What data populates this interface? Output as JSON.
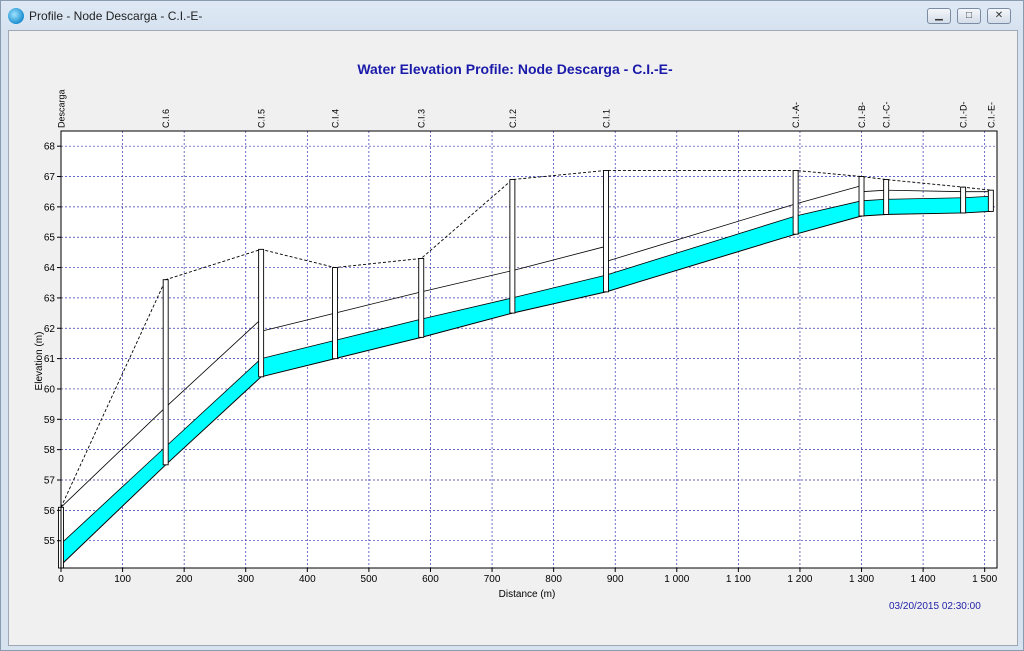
{
  "window": {
    "title": "Profile - Node Descarga - C.I.-E-",
    "minimize_icon": "minimize-icon",
    "maximize_icon": "maximize-icon",
    "close_icon": "close-icon"
  },
  "timestamp": "03/20/2015 02:30:00",
  "colors": {
    "water": "#00ffff",
    "title": "#1a1aaa",
    "grid": "#3333aa",
    "timestamp": "#2222aa"
  },
  "chart_data": {
    "type": "line",
    "title": "Water Elevation Profile:  Node Descarga - C.I.-E-",
    "xlabel": "Distance (m)",
    "ylabel": "Elevation (m)",
    "xlim": [
      0,
      1520
    ],
    "ylim": [
      54.1,
      68.5
    ],
    "xticks": [
      0,
      100,
      200,
      300,
      400,
      500,
      600,
      700,
      800,
      900,
      1000,
      1100,
      1200,
      1300,
      1400,
      1500
    ],
    "xtick_labels": [
      "0",
      "100",
      "200",
      "300",
      "400",
      "500",
      "600",
      "700",
      "800",
      "900",
      "1 000",
      "1 100",
      "1 200",
      "1 300",
      "1 400",
      "1 500"
    ],
    "yticks": [
      55,
      56,
      57,
      58,
      59,
      60,
      61,
      62,
      63,
      64,
      65,
      66,
      67,
      68
    ],
    "grid": true,
    "nodes": [
      {
        "name": "Descarga",
        "x": 0,
        "invert": 54.1,
        "ground": 56.1
      },
      {
        "name": "C.I.6",
        "x": 170,
        "invert": 57.5,
        "ground": 63.6
      },
      {
        "name": "C.I.5",
        "x": 325,
        "invert": 60.4,
        "ground": 64.6
      },
      {
        "name": "C.I.4",
        "x": 445,
        "invert": 61.0,
        "ground": 64.0
      },
      {
        "name": "C.I.3",
        "x": 585,
        "invert": 61.7,
        "ground": 64.3
      },
      {
        "name": "C.I.2",
        "x": 733,
        "invert": 62.5,
        "ground": 66.9
      },
      {
        "name": "C.I.1",
        "x": 885,
        "invert": 63.2,
        "ground": 67.2
      },
      {
        "name": "C.I.-A-",
        "x": 1193,
        "invert": 65.1,
        "ground": 67.2
      },
      {
        "name": "C.I.-B-",
        "x": 1300,
        "invert": 65.7,
        "ground": 67.0
      },
      {
        "name": "C.I.-C-",
        "x": 1340,
        "invert": 65.75,
        "ground": 66.9
      },
      {
        "name": "C.I.-D-",
        "x": 1465,
        "invert": 65.8,
        "ground": 66.65
      },
      {
        "name": "C.I.-E-",
        "x": 1510,
        "invert": 65.85,
        "ground": 66.55
      }
    ],
    "conduits": [
      {
        "x1": 0,
        "x2": 170,
        "inv1": 54.2,
        "inv2": 57.5,
        "water1": 54.9,
        "water2": 58.1,
        "crown1": 56.1,
        "crown2": 59.4
      },
      {
        "x1": 170,
        "x2": 325,
        "inv1": 57.5,
        "inv2": 60.4,
        "water1": 58.1,
        "water2": 61.0,
        "crown1": 59.4,
        "crown2": 62.3
      },
      {
        "x1": 325,
        "x2": 445,
        "inv1": 60.4,
        "inv2": 61.0,
        "water1": 61.0,
        "water2": 61.6,
        "crown1": 61.9,
        "crown2": 62.5
      },
      {
        "x1": 445,
        "x2": 585,
        "inv1": 61.0,
        "inv2": 61.7,
        "water1": 61.6,
        "water2": 62.3,
        "crown1": 62.5,
        "crown2": 63.2
      },
      {
        "x1": 585,
        "x2": 733,
        "inv1": 61.7,
        "inv2": 62.5,
        "water1": 62.3,
        "water2": 63.0,
        "crown1": 63.2,
        "crown2": 63.9
      },
      {
        "x1": 733,
        "x2": 885,
        "inv1": 62.5,
        "inv2": 63.2,
        "water1": 63.0,
        "water2": 63.75,
        "crown1": 63.9,
        "crown2": 64.7
      },
      {
        "x1": 885,
        "x2": 1193,
        "inv1": 63.2,
        "inv2": 65.1,
        "water1": 63.75,
        "water2": 65.7,
        "crown1": 64.2,
        "crown2": 66.1
      },
      {
        "x1": 1193,
        "x2": 1300,
        "inv1": 65.1,
        "inv2": 65.7,
        "water1": 65.7,
        "water2": 66.2,
        "crown1": 66.1,
        "crown2": 66.7
      },
      {
        "x1": 1300,
        "x2": 1340,
        "inv1": 65.7,
        "inv2": 65.75,
        "water1": 66.2,
        "water2": 66.25,
        "crown1": 66.5,
        "crown2": 66.55
      },
      {
        "x1": 1340,
        "x2": 1465,
        "inv1": 65.75,
        "inv2": 65.8,
        "water1": 66.25,
        "water2": 66.3,
        "crown1": 66.55,
        "crown2": 66.5
      },
      {
        "x1": 1465,
        "x2": 1510,
        "inv1": 65.8,
        "inv2": 65.85,
        "water1": 66.3,
        "water2": 66.35,
        "crown1": 66.5,
        "crown2": 66.5
      }
    ]
  }
}
